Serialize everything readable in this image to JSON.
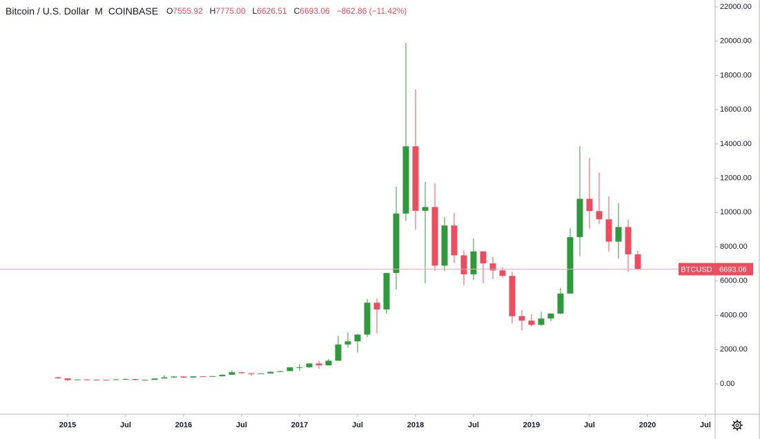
{
  "chart_data": {
    "type": "candlestick",
    "status_line": {
      "symbol": "Bitcoin / U.S. Dollar",
      "interval": "M",
      "exchange": "COINBASE",
      "ohlc": [
        {
          "label": "O",
          "value": "7555.92"
        },
        {
          "label": "H",
          "value": "7775.00"
        },
        {
          "label": "L",
          "value": "6626.51"
        },
        {
          "label": "C",
          "value": "6693.06"
        }
      ],
      "change": "−862.86 (−11.42%)"
    },
    "x": [
      "2014-12",
      "2015-01",
      "2015-02",
      "2015-03",
      "2015-04",
      "2015-05",
      "2015-06",
      "2015-07",
      "2015-08",
      "2015-09",
      "2015-10",
      "2015-11",
      "2015-12",
      "2016-01",
      "2016-02",
      "2016-03",
      "2016-04",
      "2016-05",
      "2016-06",
      "2016-07",
      "2016-08",
      "2016-09",
      "2016-10",
      "2016-11",
      "2016-12",
      "2017-01",
      "2017-02",
      "2017-03",
      "2017-04",
      "2017-05",
      "2017-06",
      "2017-07",
      "2017-08",
      "2017-09",
      "2017-10",
      "2017-11",
      "2017-12",
      "2018-01",
      "2018-02",
      "2018-03",
      "2018-04",
      "2018-05",
      "2018-06",
      "2018-07",
      "2018-08",
      "2018-09",
      "2018-10",
      "2018-11",
      "2018-12",
      "2019-01",
      "2019-02",
      "2019-03",
      "2019-04",
      "2019-05",
      "2019-06",
      "2019-07",
      "2019-08",
      "2019-09",
      "2019-10",
      "2019-11",
      "2019-12"
    ],
    "open": [
      378,
      320,
      217,
      254,
      244,
      236,
      230,
      263,
      284,
      230,
      236,
      312,
      378,
      430,
      368,
      437,
      416,
      448,
      532,
      674,
      624,
      575,
      609,
      700,
      745,
      963,
      970,
      1190,
      1080,
      1350,
      2300,
      2480,
      2875,
      4735,
      4340,
      6470,
      9940,
      13860,
      10100,
      10320,
      6900,
      9240,
      7500,
      6390,
      7730,
      7030,
      6620,
      6300,
      3950,
      3690,
      3440,
      3810,
      4100,
      5270,
      8560,
      10800,
      10080,
      9600,
      8300,
      9150,
      7555.92
    ],
    "high": [
      400,
      320,
      265,
      300,
      260,
      248,
      268,
      317,
      285,
      243,
      335,
      500,
      465,
      462,
      448,
      439,
      468,
      548,
      780,
      700,
      625,
      625,
      735,
      755,
      980,
      1150,
      1213,
      1350,
      1450,
      2800,
      3000,
      2920,
      4950,
      4980,
      6470,
      11500,
      19890,
      17180,
      11780,
      11700,
      9750,
      9990,
      7780,
      8490,
      7750,
      7410,
      6800,
      6540,
      4310,
      4060,
      4200,
      4130,
      5600,
      9080,
      13880,
      13200,
      12330,
      10950,
      10540,
      9580,
      7775
    ],
    "low": [
      310,
      160,
      210,
      235,
      215,
      225,
      218,
      253,
      198,
      222,
      236,
      305,
      345,
      350,
      364,
      395,
      411,
      438,
      524,
      585,
      470,
      570,
      605,
      680,
      745,
      750,
      920,
      890,
      1065,
      1350,
      2100,
      1830,
      2730,
      2950,
      4100,
      5500,
      9500,
      9000,
      5870,
      6600,
      6580,
      7050,
      5760,
      6060,
      5880,
      6110,
      6200,
      3540,
      3120,
      3350,
      3380,
      3650,
      4080,
      5340,
      7450,
      9060,
      9330,
      7710,
      7300,
      6530,
      6626.51
    ],
    "close": [
      320,
      217,
      254,
      244,
      236,
      230,
      263,
      284,
      230,
      236,
      312,
      378,
      430,
      368,
      437,
      416,
      448,
      532,
      674,
      624,
      575,
      609,
      700,
      745,
      963,
      970,
      1190,
      1080,
      1350,
      2300,
      2480,
      2875,
      4735,
      4340,
      6470,
      9940,
      13860,
      10100,
      10320,
      6900,
      9240,
      7500,
      6390,
      7730,
      7030,
      6620,
      6300,
      3950,
      3690,
      3440,
      3810,
      4100,
      5270,
      8560,
      10800,
      10080,
      9600,
      8300,
      9150,
      7560,
      6693.06
    ],
    "up_color": "#2f9a3c",
    "down_color": "#ec4d5f",
    "xlim": [
      "2014-06",
      "2020-08"
    ],
    "xticks": [
      {
        "value": "2015-01",
        "label": "2015"
      },
      {
        "value": "2015-07",
        "label": "Jul"
      },
      {
        "value": "2016-01",
        "label": "2016"
      },
      {
        "value": "2016-07",
        "label": "Jul"
      },
      {
        "value": "2017-01",
        "label": "2017"
      },
      {
        "value": "2017-07",
        "label": "Jul"
      },
      {
        "value": "2018-01",
        "label": "2018"
      },
      {
        "value": "2018-07",
        "label": "Jul"
      },
      {
        "value": "2019-01",
        "label": "2019"
      },
      {
        "value": "2019-07",
        "label": "Jul"
      },
      {
        "value": "2020-01",
        "label": "2020"
      },
      {
        "value": "2020-07",
        "label": "Jul"
      }
    ],
    "ylim": [
      -1770,
      22400
    ],
    "yticks": [
      {
        "value": 0,
        "label": "0.00"
      },
      {
        "value": 2000,
        "label": "2000.00"
      },
      {
        "value": 4000,
        "label": "4000.00"
      },
      {
        "value": 6000,
        "label": "6000.00"
      },
      {
        "value": 8000,
        "label": "8000.00"
      },
      {
        "value": 10000,
        "label": "10000.00"
      },
      {
        "value": 12000,
        "label": "12000.00"
      },
      {
        "value": 14000,
        "label": "14000.00"
      },
      {
        "value": 16000,
        "label": "16000.00"
      },
      {
        "value": 18000,
        "label": "18000.00"
      },
      {
        "value": 20000,
        "label": "20000.00"
      },
      {
        "value": 22000,
        "label": "22000.00"
      }
    ],
    "price_tag": {
      "symbol": "BTCUSD",
      "value": 6693.06,
      "label": "6693.06"
    }
  }
}
